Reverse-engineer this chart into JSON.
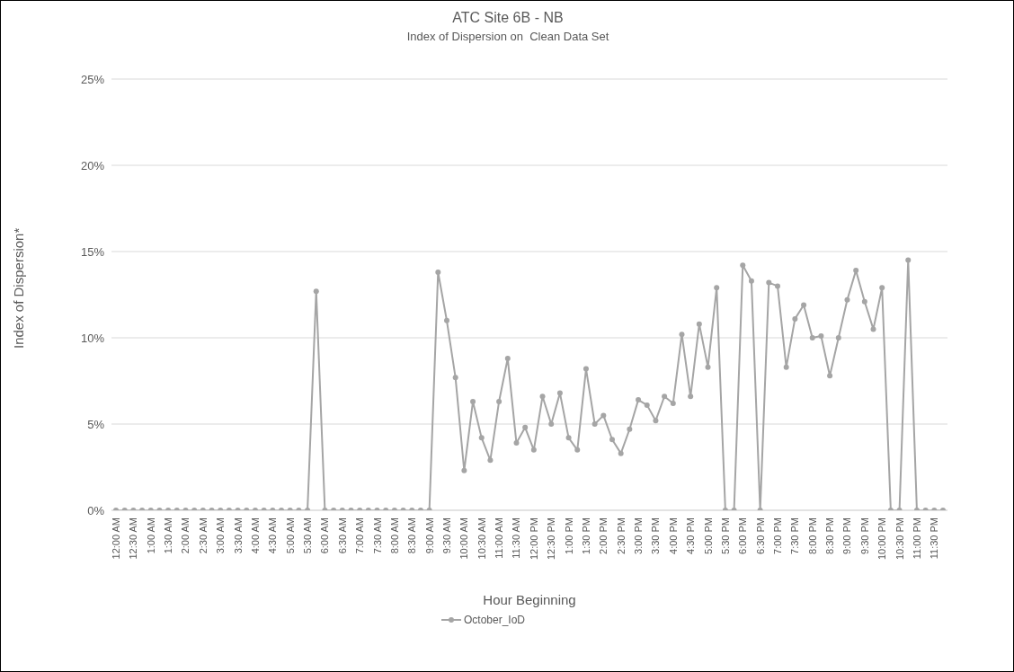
{
  "chart_data": {
    "type": "line",
    "title": "ATC Site 6B - NB",
    "subtitle": "Index of Dispersion on  Clean Data Set",
    "xlabel": "Hour Beginning",
    "ylabel": "Index of Dispersion*",
    "categories": [
      "12:00 AM",
      null,
      "12:30 AM",
      null,
      "1:00 AM",
      null,
      "1:30 AM",
      null,
      "2:00 AM",
      null,
      "2:30 AM",
      null,
      "3:00 AM",
      null,
      "3:30 AM",
      null,
      "4:00 AM",
      null,
      "4:30 AM",
      null,
      "5:00 AM",
      null,
      "5:30 AM",
      null,
      "6:00 AM",
      null,
      "6:30 AM",
      null,
      "7:00 AM",
      null,
      "7:30 AM",
      null,
      "8:00 AM",
      null,
      "8:30 AM",
      null,
      "9:00 AM",
      null,
      "9:30 AM",
      null,
      "10:00 AM",
      null,
      "10:30 AM",
      null,
      "11:00 AM",
      null,
      "11:30 AM",
      null,
      "12:00 PM",
      null,
      "12:30 PM",
      null,
      "1:00 PM",
      null,
      "1:30 PM",
      null,
      "2:00 PM",
      null,
      "2:30 PM",
      null,
      "3:00 PM",
      null,
      "3:30 PM",
      null,
      "4:00 PM",
      null,
      "4:30 PM",
      null,
      "5:00 PM",
      null,
      "5:30 PM",
      null,
      "6:00 PM",
      null,
      "6:30 PM",
      null,
      "7:00 PM",
      null,
      "7:30 PM",
      null,
      "8:00 PM",
      null,
      "8:30 PM",
      null,
      "9:00 PM",
      null,
      "9:30 PM",
      null,
      "10:00 PM",
      null,
      "10:30 PM",
      null,
      "11:00 PM",
      null,
      "11:30 PM",
      null
    ],
    "series": [
      {
        "name": "October_IoD",
        "color": "#a5a5a5",
        "values": [
          0,
          0,
          0,
          0,
          0,
          0,
          0,
          0,
          0,
          0,
          0,
          0,
          0,
          0,
          0,
          0,
          0,
          0,
          0,
          0,
          0,
          0,
          0,
          12.7,
          0,
          0,
          0,
          0,
          0,
          0,
          0,
          0,
          0,
          0,
          0,
          0,
          0,
          13.8,
          11.0,
          7.7,
          2.3,
          6.3,
          4.2,
          2.9,
          6.3,
          8.8,
          3.9,
          4.8,
          3.5,
          6.6,
          5.0,
          6.8,
          4.2,
          3.5,
          8.2,
          5.0,
          5.5,
          4.1,
          3.3,
          4.7,
          6.4,
          6.1,
          5.2,
          6.6,
          6.2,
          10.2,
          6.6,
          10.8,
          8.3,
          12.9,
          0,
          0,
          14.2,
          13.3,
          0,
          13.2,
          13.0,
          8.3,
          11.1,
          11.9,
          10.0,
          10.1,
          7.8,
          10.0,
          12.2,
          13.9,
          12.1,
          10.5,
          12.9,
          0,
          0,
          14.5,
          0,
          0,
          0,
          0
        ]
      }
    ],
    "ylim": [
      0,
      25
    ],
    "yticks": [
      {
        "value": 0,
        "label": "0%"
      },
      {
        "value": 5,
        "label": "5%"
      },
      {
        "value": 10,
        "label": "10%"
      },
      {
        "value": 15,
        "label": "15%"
      },
      {
        "value": 20,
        "label": "20%"
      },
      {
        "value": 25,
        "label": "25%"
      }
    ],
    "grid": "y",
    "legend": "bottom",
    "marker": "circle",
    "line_style": "solid"
  }
}
